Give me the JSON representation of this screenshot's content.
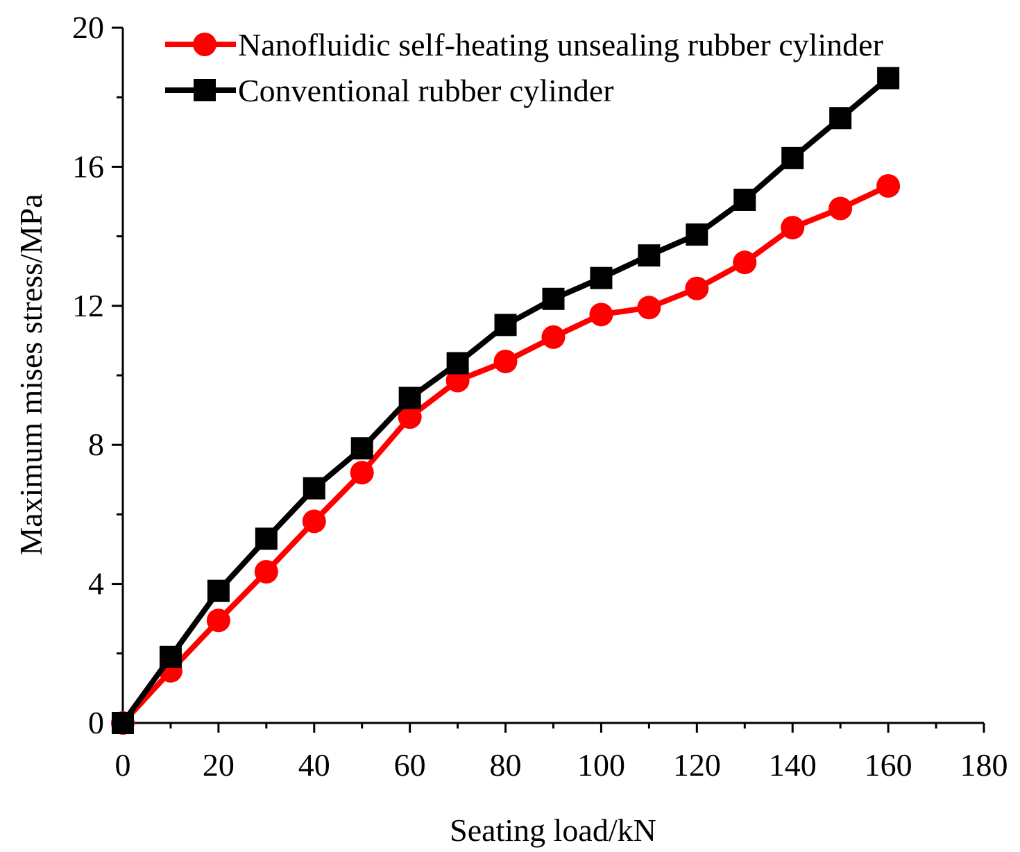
{
  "chart_data": {
    "type": "line",
    "title": "",
    "xlabel": "Seating load/kN",
    "ylabel": "Maximum mises stress/MPa",
    "xlim": [
      0,
      180
    ],
    "ylim": [
      0,
      20
    ],
    "x_ticks": [
      0,
      20,
      40,
      60,
      80,
      100,
      120,
      140,
      160,
      180
    ],
    "x_tick_labels": [
      "0",
      "20",
      "40",
      "60",
      "80",
      "100",
      "120",
      "140",
      "160",
      "180"
    ],
    "y_ticks": [
      0,
      4,
      8,
      12,
      16,
      20
    ],
    "y_tick_labels": [
      "0",
      "4",
      "8",
      "12",
      "16",
      "20"
    ],
    "grid": false,
    "legend_position": "top-left",
    "series": [
      {
        "name": "Nanofluidic self-heating unsealing rubber cylinder",
        "color": "#ff0000",
        "marker": "circle",
        "x": [
          0,
          10,
          20,
          30,
          40,
          50,
          60,
          70,
          80,
          90,
          100,
          110,
          120,
          130,
          140,
          150,
          160
        ],
        "values": [
          0,
          1.5,
          2.95,
          4.35,
          5.8,
          7.2,
          8.8,
          9.85,
          10.4,
          11.1,
          11.75,
          11.95,
          12.5,
          13.25,
          14.25,
          14.8,
          15.45
        ]
      },
      {
        "name": "Conventional rubber cylinder",
        "color": "#000000",
        "marker": "square",
        "x": [
          0,
          10,
          20,
          30,
          40,
          50,
          60,
          70,
          80,
          90,
          100,
          110,
          120,
          130,
          140,
          150,
          160
        ],
        "values": [
          0,
          1.9,
          3.8,
          5.3,
          6.75,
          7.9,
          9.35,
          10.35,
          11.45,
          12.2,
          12.8,
          13.45,
          14.05,
          15.05,
          16.25,
          17.4,
          18.55
        ]
      }
    ]
  }
}
